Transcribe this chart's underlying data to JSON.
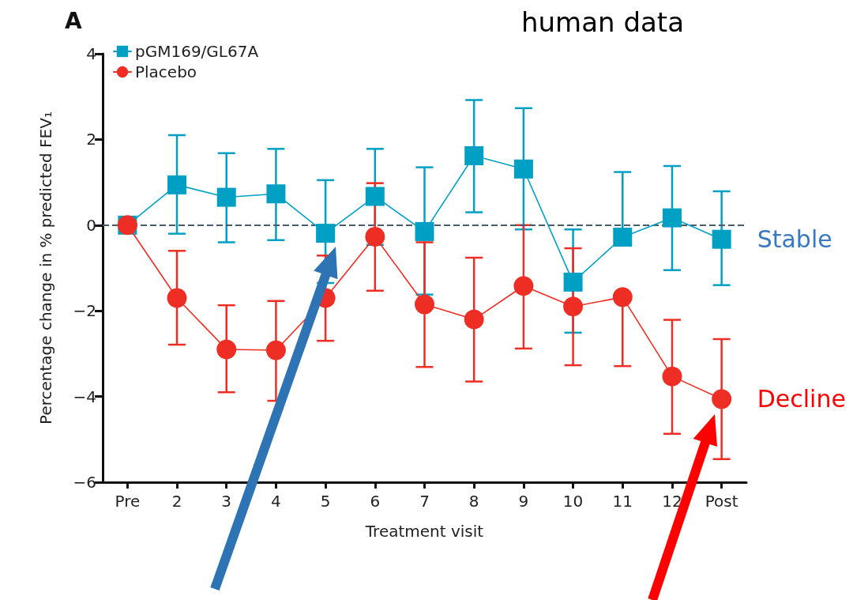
{
  "chart_data": {
    "type": "line",
    "title": "human data",
    "xlabel": "Treatment visit",
    "ylabel": "Percentage change in % predicted FEV₁",
    "categories": [
      "Pre",
      "2",
      "3",
      "4",
      "5",
      "6",
      "7",
      "8",
      "9",
      "10",
      "11",
      "12",
      "Post"
    ],
    "series": [
      {
        "name": "pGM169/GL67A",
        "color": "#00a0c4",
        "marker": "square",
        "values": [
          0,
          0.94,
          0.65,
          0.73,
          -0.19,
          0.67,
          -0.15,
          1.62,
          1.31,
          -1.33,
          -0.28,
          0.17,
          -0.33
        ],
        "errors": [
          null,
          [
            -0.2,
            2.1
          ],
          [
            -0.4,
            1.68
          ],
          [
            -0.35,
            1.78
          ],
          [
            -1.35,
            1.05
          ],
          [
            -0.46,
            1.78
          ],
          [
            -1.62,
            1.35
          ],
          [
            0.3,
            2.92
          ],
          [
            -0.1,
            2.73
          ],
          [
            -2.51,
            -0.1
          ],
          [
            -0.28,
            1.24
          ],
          [
            -1.05,
            1.38
          ],
          [
            -1.4,
            0.79
          ]
        ]
      },
      {
        "name": "Placebo",
        "color": "#ee2d24",
        "marker": "circle",
        "values": [
          0,
          -1.7,
          -2.9,
          -2.92,
          -1.7,
          -0.27,
          -1.85,
          -2.2,
          -1.42,
          -1.9,
          -1.68,
          -3.53,
          -4.06
        ],
        "errors": [
          null,
          [
            -2.79,
            -0.6
          ],
          [
            -3.9,
            -1.87
          ],
          [
            -4.1,
            -1.77
          ],
          [
            -2.7,
            -0.71
          ],
          [
            -1.53,
            0.98
          ],
          [
            -3.31,
            -0.4
          ],
          [
            -3.65,
            -0.76
          ],
          [
            -2.88,
            0
          ],
          [
            -3.27,
            -0.54
          ],
          [
            -3.29,
            -1.68
          ],
          [
            -4.87,
            -2.21
          ],
          [
            -5.46,
            -2.66
          ]
        ]
      }
    ],
    "ylim": [
      -6,
      4
    ],
    "yticks": [
      -6,
      -4,
      -2,
      0,
      2,
      4
    ],
    "grid": false,
    "legend": "top left",
    "line_style": "solid",
    "ref_lines": [
      {
        "axis": "y",
        "value": 0,
        "color": "#4a5a66",
        "line_style": "dashed"
      }
    ],
    "annotations": [
      "A",
      {
        "text": "Stable",
        "x": "Post",
        "y": -0.33
      },
      {
        "text": "Decline",
        "x": "Post",
        "y": -4.06
      }
    ]
  }
}
